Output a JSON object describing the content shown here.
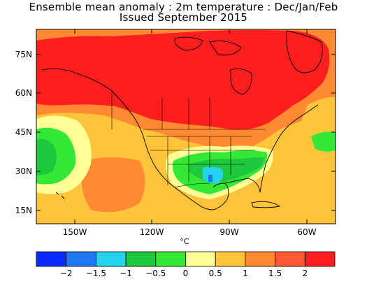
{
  "title_line1": "Ensemble mean anomaly : 2m temperature : Dec/Jan/Feb",
  "title_line2": "Issued September 2015",
  "map": {
    "lat_ticks": [
      "75N",
      "60N",
      "45N",
      "30N",
      "15N"
    ],
    "lon_ticks": [
      "150W",
      "120W",
      "90W",
      "60W"
    ],
    "unit_label": "°C",
    "colors": {
      "strong_warm": "#ff1e1e",
      "warm": "#ff8a32",
      "mild_warm": "#ffc43a",
      "slight_warm": "#ffff96",
      "mild_cool": "#36e836",
      "cool": "#1ec83c",
      "cold": "#27d2ef"
    }
  },
  "colorbar": {
    "tick_labels": [
      "−2",
      "−1.5",
      "−1",
      "−0.5",
      "0",
      "0.5",
      "1",
      "1.5",
      "2"
    ],
    "colors": [
      "#0a2aff",
      "#1e78f0",
      "#27d2ef",
      "#1ec83c",
      "#36e836",
      "#ffff96",
      "#ffc43a",
      "#ff8a32",
      "#ff5a32",
      "#ff1e1e"
    ]
  }
}
